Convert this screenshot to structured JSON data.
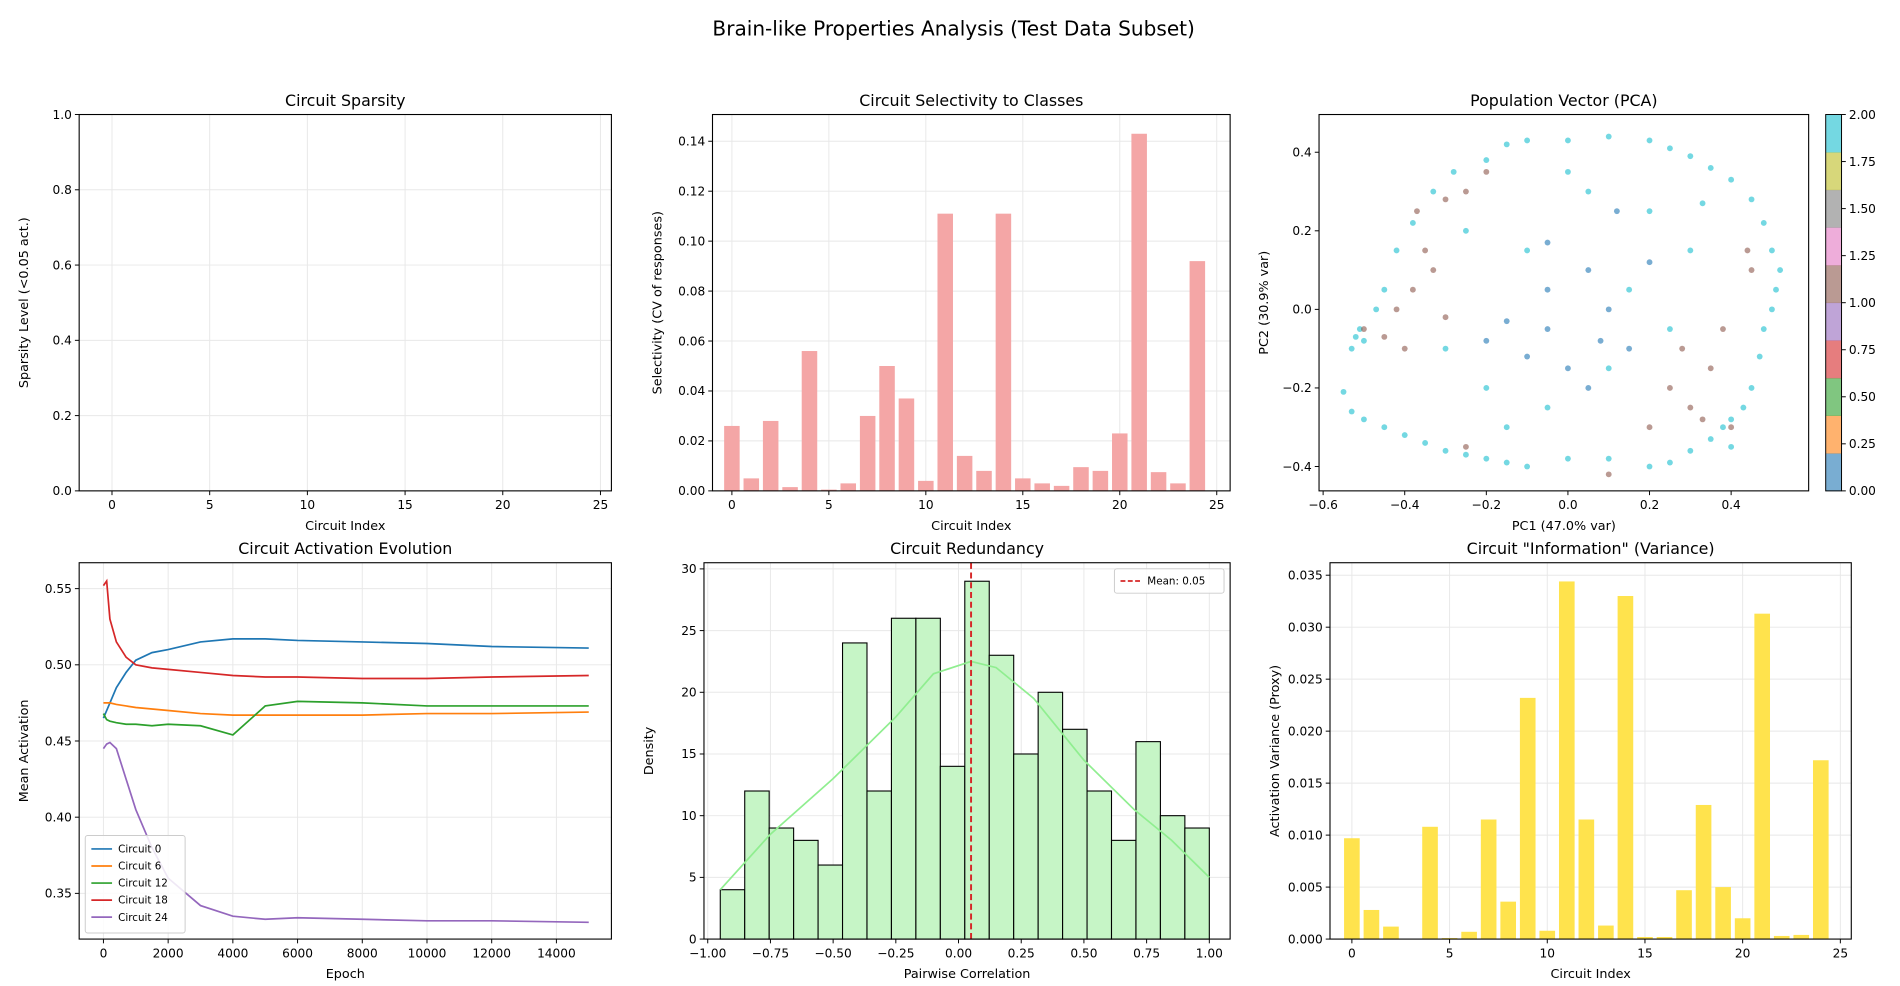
{
  "title": "Brain-like Properties Analysis (Test Data Subset)",
  "chart_data": [
    {
      "type": "bar",
      "title": "Circuit Sparsity",
      "xlabel": "Circuit Index",
      "ylabel": "Sparsity Level (<0.05 act.)",
      "x": [
        0,
        1,
        2,
        3,
        4,
        5,
        6,
        7,
        8,
        9,
        10,
        11,
        12,
        13,
        14,
        15,
        16,
        17,
        18,
        19,
        20,
        21,
        22,
        23,
        24
      ],
      "values": [
        0,
        0,
        0,
        0,
        0,
        0,
        0,
        0,
        0,
        0,
        0,
        0,
        0,
        0,
        0,
        0,
        0,
        0,
        0,
        0,
        0,
        0,
        0,
        0,
        0
      ],
      "color": "#7eb3dd",
      "xlim": [
        -1.68,
        25.56
      ],
      "ylim": [
        0,
        1
      ],
      "xticks": [
        0,
        5,
        10,
        15,
        20,
        25
      ],
      "yticks": [
        {
          "value": 0,
          "label": "0.0"
        },
        0.2,
        0.4,
        0.6,
        0.8,
        {
          "value": 1,
          "label": "1.0"
        }
      ],
      "grid": true
    },
    {
      "type": "bar",
      "title": "Circuit Selectivity to Classes",
      "xlabel": "Circuit Index",
      "ylabel": "Selectivity (CV of responses)",
      "x": [
        0,
        1,
        2,
        3,
        4,
        5,
        6,
        7,
        8,
        9,
        10,
        11,
        12,
        13,
        14,
        15,
        16,
        17,
        18,
        19,
        20,
        21,
        22,
        23,
        24
      ],
      "values": [
        0.026,
        0.005,
        0.028,
        0.0015,
        0.056,
        0.0005,
        0.003,
        0.03,
        0.05,
        0.037,
        0.004,
        0.111,
        0.014,
        0.008,
        0.111,
        0.005,
        0.003,
        0.002,
        0.0095,
        0.008,
        0.023,
        0.143,
        0.0075,
        0.003,
        0.092
      ],
      "color": "#f4a6a6",
      "xlim": [
        -1.0,
        25.69
      ],
      "ylim": [
        0,
        0.1507
      ],
      "xticks": [
        0,
        5,
        10,
        15,
        20,
        25
      ],
      "yticks": [
        {
          "value": 0,
          "label": "0.00"
        },
        0.02,
        0.04,
        0.06,
        0.08,
        {
          "value": 0.1,
          "label": "0.10"
        },
        0.12,
        0.14
      ],
      "grid": true
    },
    {
      "type": "scatter",
      "title": "Population Vector (PCA)",
      "xlabel": "PC1 (47.0% var)",
      "ylabel": "PC2 (30.9% var)",
      "x": [
        -0.52,
        -0.5,
        -0.53,
        -0.51,
        -0.55,
        -0.53,
        -0.5,
        -0.45,
        -0.4,
        -0.35,
        -0.3,
        -0.25,
        -0.2,
        -0.15,
        -0.1,
        0.0,
        0.1,
        0.2,
        0.25,
        0.3,
        0.35,
        0.38,
        0.4,
        0.43,
        0.45,
        0.47,
        0.48,
        0.5,
        0.51,
        0.52,
        0.5,
        0.48,
        0.45,
        0.4,
        0.35,
        0.3,
        0.25,
        0.2,
        0.1,
        0.0,
        -0.1,
        -0.15,
        -0.2,
        -0.28,
        -0.33,
        -0.38,
        -0.42,
        -0.45,
        -0.47,
        -0.25,
        -0.1,
        0.05,
        0.2,
        0.3,
        0.15,
        -0.2,
        -0.05,
        0.1,
        0.25,
        -0.3,
        0.33,
        0.4,
        0.0,
        -0.15,
        -0.5,
        -0.45,
        -0.4,
        -0.42,
        -0.38,
        -0.35,
        -0.37,
        -0.3,
        -0.33,
        -0.3,
        -0.25,
        -0.2,
        -0.25,
        0.25,
        0.3,
        0.35,
        0.38,
        0.4,
        0.28,
        0.33,
        0.45,
        0.44,
        0.1,
        0.2,
        -0.05,
        0.05,
        0.1,
        -0.05,
        0.15,
        -0.15,
        -0.1,
        0.05,
        0.2,
        0.12,
        -0.05,
        0.08,
        -0.2,
        0.0
      ],
      "y": [
        -0.07,
        -0.08,
        -0.1,
        -0.05,
        -0.21,
        -0.26,
        -0.28,
        -0.3,
        -0.32,
        -0.34,
        -0.36,
        -0.37,
        -0.38,
        -0.39,
        -0.4,
        -0.38,
        -0.38,
        -0.4,
        -0.39,
        -0.36,
        -0.33,
        -0.3,
        -0.28,
        -0.25,
        -0.2,
        -0.12,
        -0.05,
        0.0,
        0.05,
        0.1,
        0.15,
        0.22,
        0.28,
        0.33,
        0.36,
        0.39,
        0.41,
        0.43,
        0.44,
        0.43,
        0.43,
        0.42,
        0.38,
        0.35,
        0.3,
        0.22,
        0.15,
        0.05,
        0.0,
        0.2,
        0.15,
        0.3,
        0.25,
        0.15,
        0.05,
        -0.2,
        -0.25,
        -0.15,
        -0.05,
        -0.1,
        0.27,
        -0.35,
        0.35,
        -0.3,
        -0.05,
        -0.07,
        -0.1,
        0.0,
        0.05,
        0.15,
        0.25,
        0.28,
        0.1,
        -0.02,
        0.3,
        0.35,
        -0.35,
        -0.2,
        -0.25,
        -0.15,
        -0.05,
        -0.3,
        -0.1,
        -0.28,
        0.1,
        0.15,
        -0.42,
        -0.3,
        0.17,
        0.1,
        0.0,
        0.05,
        -0.1,
        -0.03,
        -0.12,
        -0.2,
        0.12,
        0.25,
        -0.05,
        -0.08,
        -0.08,
        -0.15
      ],
      "c": [
        2,
        2,
        2,
        2,
        2,
        2,
        2,
        2,
        2,
        2,
        2,
        2,
        2,
        2,
        2,
        2,
        2,
        2,
        2,
        2,
        2,
        2,
        2,
        2,
        2,
        2,
        2,
        2,
        2,
        2,
        2,
        2,
        2,
        2,
        2,
        2,
        2,
        2,
        2,
        2,
        2,
        2,
        2,
        2,
        2,
        2,
        2,
        2,
        2,
        2,
        2,
        2,
        2,
        2,
        2,
        2,
        2,
        2,
        2,
        2,
        2,
        2,
        2,
        2,
        1,
        1,
        1,
        1,
        1,
        1,
        1,
        1,
        1,
        1,
        1,
        1,
        1,
        1,
        1,
        1,
        1,
        1,
        1,
        1,
        1,
        1,
        1,
        1,
        0,
        0,
        0,
        0,
        0,
        0,
        0,
        0,
        0,
        0,
        0,
        0,
        0,
        0
      ],
      "colorbar": {
        "colors": [
          "#1f77b4",
          "#ff7f0e",
          "#2ca02c",
          "#d62728",
          "#9467bd",
          "#8c564b",
          "#e377c2",
          "#7f7f7f",
          "#bcbd22",
          "#17becf"
        ],
        "lim": [
          0,
          2
        ],
        "ticks": [
          {
            "value": 0,
            "label": "0.00"
          },
          0.25,
          {
            "value": 0.5,
            "label": "0.50"
          },
          0.75,
          {
            "value": 1,
            "label": "1.00"
          },
          1.25,
          {
            "value": 1.5,
            "label": "1.50"
          },
          1.75,
          {
            "value": 2,
            "label": "2.00"
          }
        ]
      },
      "xlim": [
        -0.61,
        0.59
      ],
      "ylim": [
        -0.462,
        0.496
      ],
      "xticks": [
        {
          "value": -0.6,
          "label": "−0.6"
        },
        {
          "value": -0.4,
          "label": "−0.4"
        },
        {
          "value": -0.2,
          "label": "−0.2"
        },
        {
          "value": 0,
          "label": "0.0"
        },
        0.2,
        0.4
      ],
      "yticks": [
        {
          "value": -0.4,
          "label": "−0.4"
        },
        {
          "value": -0.2,
          "label": "−0.2"
        },
        {
          "value": 0,
          "label": "0.0"
        },
        0.2,
        0.4
      ],
      "grid": false
    },
    {
      "type": "line",
      "title": "Circuit Activation Evolution",
      "xlabel": "Epoch",
      "ylabel": "Mean Activation",
      "x": [
        0,
        100,
        200,
        400,
        700,
        1000,
        1500,
        2000,
        3000,
        4000,
        5000,
        6000,
        8000,
        10000,
        12000,
        15000
      ],
      "series": [
        {
          "name": "Circuit 0",
          "color": "#1f77b4",
          "values": [
            0.465,
            0.47,
            0.475,
            0.485,
            0.495,
            0.503,
            0.508,
            0.51,
            0.515,
            0.517,
            0.517,
            0.516,
            0.515,
            0.514,
            0.512,
            0.511
          ]
        },
        {
          "name": "Circuit 6",
          "color": "#ff7f0e",
          "values": [
            0.475,
            0.475,
            0.475,
            0.474,
            0.473,
            0.472,
            0.471,
            0.47,
            0.468,
            0.467,
            0.467,
            0.467,
            0.467,
            0.468,
            0.468,
            0.469
          ]
        },
        {
          "name": "Circuit 12",
          "color": "#2ca02c",
          "values": [
            0.468,
            0.464,
            0.463,
            0.462,
            0.461,
            0.461,
            0.46,
            0.461,
            0.46,
            0.454,
            0.473,
            0.476,
            0.475,
            0.473,
            0.473,
            0.473
          ]
        },
        {
          "name": "Circuit 18",
          "color": "#d62728",
          "values": [
            0.552,
            0.555,
            0.53,
            0.515,
            0.505,
            0.5,
            0.498,
            0.497,
            0.495,
            0.493,
            0.492,
            0.492,
            0.491,
            0.491,
            0.492,
            0.493
          ]
        },
        {
          "name": "Circuit 24",
          "color": "#9467bd",
          "values": [
            0.445,
            0.448,
            0.449,
            0.445,
            0.425,
            0.405,
            0.38,
            0.36,
            0.342,
            0.335,
            0.333,
            0.334,
            0.333,
            0.332,
            0.332,
            0.331
          ]
        }
      ],
      "legend": "lower left",
      "xlim": [
        -750,
        15700
      ],
      "ylim": [
        0.32,
        0.567
      ],
      "xticks": [
        0,
        2000,
        4000,
        6000,
        8000,
        10000,
        12000,
        14000
      ],
      "yticks": [
        0.35,
        {
          "value": 0.4,
          "label": "0.40"
        },
        0.45,
        {
          "value": 0.5,
          "label": "0.50"
        },
        0.55
      ],
      "grid": true
    },
    {
      "type": "histogram",
      "title": "Circuit Redundancy",
      "xlabel": "Pairwise Correlation",
      "ylabel": "Density",
      "bins": [
        -0.95,
        -0.8525,
        -0.755,
        -0.6575,
        -0.56,
        -0.4625,
        -0.365,
        -0.2675,
        -0.17,
        -0.0725,
        0.025,
        0.1225,
        0.22,
        0.3175,
        0.415,
        0.5125,
        0.61,
        0.7075,
        0.805,
        0.9025,
        1.0
      ],
      "values": [
        4,
        12,
        9,
        8,
        6,
        24,
        12,
        26,
        26,
        14,
        29,
        23,
        15,
        20,
        17,
        12,
        8,
        16,
        10,
        9
      ],
      "color": "#c6f5c6",
      "edgecolor": "#000000",
      "kde": {
        "x": [
          -0.95,
          -0.75,
          -0.5,
          -0.25,
          -0.1,
          0.05,
          0.15,
          0.3,
          0.5,
          0.7,
          0.85,
          1.0
        ],
        "values": [
          4,
          8.5,
          13,
          18,
          21.5,
          22.5,
          22,
          19.5,
          14.5,
          10.5,
          8,
          5
        ],
        "color": "#90ee90"
      },
      "mean_line": {
        "value": 0.05,
        "label": "Mean: 0.05",
        "color": "#d62728"
      },
      "legend": "upper right",
      "xlim": [
        -1.015,
        1.083
      ],
      "ylim": [
        0,
        30.5
      ],
      "xticks": [
        {
          "value": -1,
          "label": "−1.00"
        },
        {
          "value": -0.75,
          "label": "−0.75"
        },
        {
          "value": -0.5,
          "label": "−0.50"
        },
        {
          "value": -0.25,
          "label": "−0.25"
        },
        {
          "value": 0,
          "label": "0.00"
        },
        0.25,
        {
          "value": 0.5,
          "label": "0.50"
        },
        0.75,
        {
          "value": 1,
          "label": "1.00"
        }
      ],
      "yticks": [
        0,
        5,
        10,
        15,
        20,
        25,
        30
      ],
      "grid": true
    },
    {
      "type": "bar",
      "title": "Circuit \"Information\" (Variance)",
      "xlabel": "Circuit Index",
      "ylabel": "Activation Variance (Proxy)",
      "x": [
        0,
        1,
        2,
        3,
        4,
        5,
        6,
        7,
        8,
        9,
        10,
        11,
        12,
        13,
        14,
        15,
        16,
        17,
        18,
        19,
        20,
        21,
        22,
        23,
        24
      ],
      "values": [
        0.0097,
        0.0028,
        0.0012,
        0.0,
        0.0108,
        0.0001,
        0.0007,
        0.0115,
        0.0036,
        0.0232,
        0.0008,
        0.0344,
        0.0115,
        0.0013,
        0.033,
        0.0002,
        0.0002,
        0.0047,
        0.0129,
        0.005,
        0.002,
        0.0313,
        0.0003,
        0.0004,
        0.0172
      ],
      "color": "#ffe34d",
      "xlim": [
        -1.12,
        25.56
      ],
      "ylim": [
        0,
        0.0362
      ],
      "xticks": [
        0,
        5,
        10,
        15,
        20,
        25
      ],
      "yticks": [
        {
          "value": 0,
          "label": "0.000"
        },
        0.005,
        {
          "value": 0.01,
          "label": "0.010"
        },
        0.015,
        {
          "value": 0.02,
          "label": "0.020"
        },
        0.025,
        {
          "value": 0.03,
          "label": "0.030"
        },
        0.035
      ],
      "grid": true
    }
  ]
}
